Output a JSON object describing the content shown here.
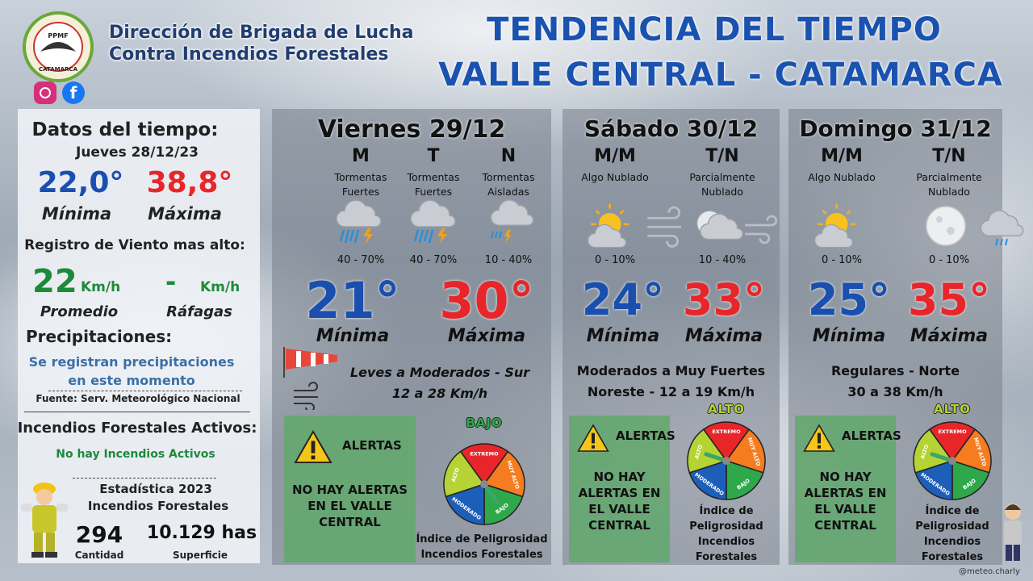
{
  "header": {
    "org_line1": "Dirección de Brigada de Lucha",
    "org_line2": "Contra Incendios Forestales",
    "title_line1": "TENDENCIA DEL TIEMPO",
    "title_line2": "VALLE CENTRAL - CATAMARCA",
    "logo_text": "PPMF",
    "logo_place": "CATAMARCA"
  },
  "current": {
    "title": "Datos del tiempo:",
    "date": "Jueves 28/12/23",
    "min": "22,0°",
    "min_label": "Mínima",
    "max": "38,8°",
    "max_label": "Máxima",
    "wind_title": "Registro de Viento mas alto:",
    "wind_avg": "22",
    "wind_avg_unit": "Km/h",
    "wind_gust": "-",
    "wind_gust_unit": "Km/h",
    "wind_avg_label": "Promedio",
    "wind_gust_label": "Ráfagas",
    "precip_title": "Precipitaciones:",
    "precip_text": "Se registran precipitaciones en este momento",
    "source": "Fuente: Serv. Meteorológico Nacional",
    "fires_title": "Incendios Forestales Activos:",
    "fires_text": "No hay Incendios Activos",
    "stats_title": "Estadística 2023",
    "stats_subtitle": "Incendios Forestales",
    "count": "294",
    "count_label": "Cantidad",
    "area": "10.129 has",
    "area_label": "Superficie"
  },
  "days": [
    {
      "day": "Viernes 29/12",
      "periods": [
        {
          "label": "M",
          "description": "Tormentas Fuertes",
          "probability": "40 - 70%"
        },
        {
          "label": "T",
          "description": "Tormentas Fuertes",
          "probability": "40 - 70%"
        },
        {
          "label": "N",
          "description": "Tormentas Aisladas",
          "probability": "10 - 40%"
        }
      ],
      "min": "21°",
      "min_label": "Mínima",
      "max": "30°",
      "max_label": "Máxima",
      "wind_direction": "Leves a Moderados - Sur",
      "wind_speed": "12 a 28 Km/h",
      "alert_title": "ALERTAS",
      "alert_text": "NO HAY ALERTAS EN EL VALLE CENTRAL",
      "danger_level": "BAJO",
      "danger_index_label": "Índice de Peligrosidad Incendios Forestales"
    },
    {
      "day": "Sábado 30/12",
      "periods": [
        {
          "label": "M/M",
          "description": "Algo Nublado",
          "probability": "0 - 10%"
        },
        {
          "label": "T/N",
          "description": "Parcialmente Nublado",
          "probability": "10 - 40%"
        }
      ],
      "min": "24°",
      "min_label": "Mínima",
      "max": "33°",
      "max_label": "Máxima",
      "wind_direction": "Moderados a Muy Fuertes",
      "wind_speed": "Noreste - 12 a 19 Km/h",
      "alert_title": "ALERTAS",
      "alert_text": "NO HAY ALERTAS EN EL VALLE CENTRAL",
      "danger_level": "ALTO",
      "danger_index_label": "Índice de Peligrosidad Incendios Forestales"
    },
    {
      "day": "Domingo 31/12",
      "periods": [
        {
          "label": "M/M",
          "description": "Algo Nublado",
          "probability": "0 - 10%"
        },
        {
          "label": "T/N",
          "description": "Parcialmente Nublado",
          "probability": "0 - 10%"
        }
      ],
      "min": "25°",
      "min_label": "Mínima",
      "max": "35°",
      "max_label": "Máxima",
      "wind_direction": "Regulares - Norte",
      "wind_speed": "30 a 38 Km/h",
      "alert_title": "ALERTAS",
      "alert_text": "NO HAY ALERTAS EN EL VALLE CENTRAL",
      "danger_level": "ALTO",
      "danger_index_label": "Índice de Peligrosidad Incendios Forestales"
    }
  ],
  "gauge_labels": [
    "EXTREMO",
    "MUY ALTO",
    "BAJO",
    "MODERADO",
    "ALTO"
  ],
  "credit": "@meteo.charly"
}
